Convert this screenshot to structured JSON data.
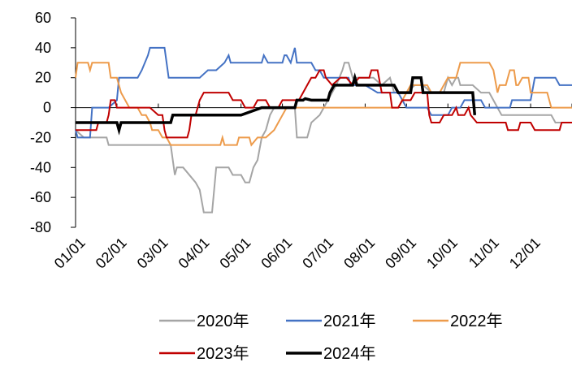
{
  "chart_data": {
    "type": "line",
    "title": "",
    "xlabel": "",
    "ylabel": "",
    "ylim": [
      -80,
      60
    ],
    "yticks": [
      60,
      40,
      20,
      0,
      -20,
      -40,
      -60,
      -80
    ],
    "x_tick_labels": [
      "01/01",
      "02/01",
      "03/01",
      "04/01",
      "05/01",
      "06/01",
      "07/01",
      "08/01",
      "09/01",
      "10/01",
      "11/01",
      "12/01"
    ],
    "grid": false,
    "legend_position": "bottom",
    "series": [
      {
        "name": "2020年",
        "color": "#a5a5a5",
        "points": [
          [
            0.0,
            -15
          ],
          [
            0.2,
            -20
          ],
          [
            0.75,
            -20
          ],
          [
            0.8,
            -25
          ],
          [
            2.3,
            -25
          ],
          [
            2.4,
            -45
          ],
          [
            2.45,
            -40
          ],
          [
            2.6,
            -40
          ],
          [
            2.9,
            -50
          ],
          [
            3.0,
            -55
          ],
          [
            3.1,
            -70
          ],
          [
            3.3,
            -70
          ],
          [
            3.4,
            -40
          ],
          [
            3.7,
            -40
          ],
          [
            3.8,
            -45
          ],
          [
            4.0,
            -45
          ],
          [
            4.1,
            -50
          ],
          [
            4.2,
            -50
          ],
          [
            4.3,
            -40
          ],
          [
            4.4,
            -35
          ],
          [
            4.5,
            -20
          ],
          [
            4.6,
            -15
          ],
          [
            4.7,
            -5
          ],
          [
            4.8,
            0
          ],
          [
            5.3,
            0
          ],
          [
            5.35,
            -20
          ],
          [
            5.6,
            -20
          ],
          [
            5.7,
            -10
          ],
          [
            5.9,
            -5
          ],
          [
            6.0,
            0
          ],
          [
            6.1,
            5
          ],
          [
            6.3,
            15
          ],
          [
            6.45,
            25
          ],
          [
            6.5,
            30
          ],
          [
            6.6,
            30
          ],
          [
            6.7,
            20
          ],
          [
            7.2,
            20
          ],
          [
            7.4,
            15
          ],
          [
            7.6,
            20
          ],
          [
            7.7,
            10
          ],
          [
            8.0,
            10
          ],
          [
            8.2,
            15
          ],
          [
            8.4,
            15
          ],
          [
            8.6,
            10
          ],
          [
            8.9,
            10
          ],
          [
            9.0,
            20
          ],
          [
            9.1,
            15
          ],
          [
            9.2,
            20
          ],
          [
            9.25,
            20
          ],
          [
            9.3,
            15
          ],
          [
            9.6,
            15
          ],
          [
            9.8,
            10
          ],
          [
            10.0,
            10
          ],
          [
            10.2,
            0
          ],
          [
            10.3,
            -5
          ],
          [
            11.0,
            -5
          ],
          [
            11.5,
            -5
          ],
          [
            11.6,
            -10
          ],
          [
            12.0,
            -10
          ]
        ]
      },
      {
        "name": "2021年",
        "color": "#4472c4",
        "points": [
          [
            0.0,
            -15
          ],
          [
            0.05,
            -20
          ],
          [
            0.35,
            -20
          ],
          [
            0.4,
            0
          ],
          [
            0.8,
            0
          ],
          [
            1.0,
            5
          ],
          [
            1.05,
            20
          ],
          [
            1.1,
            20
          ],
          [
            1.5,
            20
          ],
          [
            1.6,
            25
          ],
          [
            1.75,
            35
          ],
          [
            1.8,
            40
          ],
          [
            2.15,
            40
          ],
          [
            2.25,
            20
          ],
          [
            2.9,
            20
          ],
          [
            3.0,
            20
          ],
          [
            3.2,
            25
          ],
          [
            3.4,
            25
          ],
          [
            3.6,
            30
          ],
          [
            3.7,
            35
          ],
          [
            3.75,
            30
          ],
          [
            3.9,
            30
          ],
          [
            4.0,
            30
          ],
          [
            4.3,
            30
          ],
          [
            4.5,
            30
          ],
          [
            4.55,
            35
          ],
          [
            4.65,
            30
          ],
          [
            5.0,
            30
          ],
          [
            5.05,
            35
          ],
          [
            5.1,
            35
          ],
          [
            5.2,
            30
          ],
          [
            5.3,
            40
          ],
          [
            5.35,
            30
          ],
          [
            5.7,
            30
          ],
          [
            5.8,
            25
          ],
          [
            5.9,
            25
          ],
          [
            6.0,
            20
          ],
          [
            6.4,
            20
          ],
          [
            6.6,
            20
          ],
          [
            6.65,
            15
          ],
          [
            6.8,
            15
          ],
          [
            7.0,
            15
          ],
          [
            7.3,
            10
          ],
          [
            7.8,
            10
          ],
          [
            7.9,
            5
          ],
          [
            8.0,
            0
          ],
          [
            8.5,
            0
          ],
          [
            8.6,
            -5
          ],
          [
            9.0,
            -5
          ],
          [
            9.1,
            0
          ],
          [
            9.3,
            0
          ],
          [
            9.4,
            5
          ],
          [
            9.8,
            5
          ],
          [
            9.9,
            0
          ],
          [
            10.3,
            0
          ],
          [
            10.5,
            0
          ],
          [
            10.55,
            5
          ],
          [
            10.9,
            5
          ],
          [
            11.0,
            5
          ],
          [
            11.1,
            20
          ],
          [
            11.6,
            20
          ],
          [
            11.7,
            15
          ],
          [
            12.0,
            15
          ]
        ]
      },
      {
        "name": "2022年",
        "color": "#ed9b4b",
        "points": [
          [
            0.0,
            20
          ],
          [
            0.05,
            30
          ],
          [
            0.3,
            30
          ],
          [
            0.35,
            25
          ],
          [
            0.4,
            30
          ],
          [
            0.8,
            30
          ],
          [
            0.85,
            20
          ],
          [
            1.0,
            20
          ],
          [
            1.1,
            10
          ],
          [
            1.2,
            5
          ],
          [
            1.3,
            0
          ],
          [
            1.5,
            0
          ],
          [
            1.6,
            -5
          ],
          [
            1.7,
            -5
          ],
          [
            1.8,
            -10
          ],
          [
            1.85,
            -15
          ],
          [
            2.0,
            -15
          ],
          [
            2.1,
            -20
          ],
          [
            2.2,
            -20
          ],
          [
            2.3,
            -25
          ],
          [
            3.5,
            -25
          ],
          [
            3.55,
            -20
          ],
          [
            3.6,
            -25
          ],
          [
            3.9,
            -25
          ],
          [
            3.95,
            -20
          ],
          [
            4.2,
            -20
          ],
          [
            4.25,
            -25
          ],
          [
            4.4,
            -20
          ],
          [
            4.6,
            -20
          ],
          [
            4.8,
            -15
          ],
          [
            4.9,
            -10
          ],
          [
            5.0,
            -5
          ],
          [
            5.1,
            0
          ],
          [
            7.8,
            0
          ],
          [
            7.9,
            5
          ],
          [
            8.0,
            10
          ],
          [
            8.1,
            15
          ],
          [
            8.5,
            15
          ],
          [
            8.6,
            10
          ],
          [
            8.8,
            10
          ],
          [
            8.9,
            15
          ],
          [
            9.0,
            20
          ],
          [
            9.2,
            20
          ],
          [
            9.3,
            30
          ],
          [
            10.0,
            30
          ],
          [
            10.1,
            25
          ],
          [
            10.2,
            10
          ],
          [
            10.25,
            15
          ],
          [
            10.4,
            15
          ],
          [
            10.5,
            25
          ],
          [
            10.6,
            25
          ],
          [
            10.65,
            15
          ],
          [
            10.7,
            15
          ],
          [
            10.8,
            20
          ],
          [
            10.95,
            20
          ],
          [
            11.0,
            10
          ],
          [
            11.4,
            10
          ],
          [
            11.5,
            0
          ],
          [
            12.0,
            0
          ]
        ]
      },
      {
        "name": "2023年",
        "color": "#c00000",
        "points": [
          [
            0.0,
            -15
          ],
          [
            0.5,
            -15
          ],
          [
            0.55,
            -10
          ],
          [
            0.75,
            -10
          ],
          [
            0.8,
            -5
          ],
          [
            0.85,
            5
          ],
          [
            0.95,
            5
          ],
          [
            1.0,
            0
          ],
          [
            1.5,
            0
          ],
          [
            1.8,
            0
          ],
          [
            2.0,
            -5
          ],
          [
            2.1,
            -5
          ],
          [
            2.15,
            -15
          ],
          [
            2.2,
            -20
          ],
          [
            2.7,
            -20
          ],
          [
            2.75,
            -15
          ],
          [
            2.8,
            -5
          ],
          [
            2.9,
            -5
          ],
          [
            3.0,
            5
          ],
          [
            3.1,
            10
          ],
          [
            3.7,
            10
          ],
          [
            3.8,
            5
          ],
          [
            4.0,
            5
          ],
          [
            4.1,
            0
          ],
          [
            4.3,
            0
          ],
          [
            4.4,
            5
          ],
          [
            4.6,
            5
          ],
          [
            4.7,
            0
          ],
          [
            4.9,
            0
          ],
          [
            5.0,
            5
          ],
          [
            5.4,
            5
          ],
          [
            5.5,
            10
          ],
          [
            5.6,
            15
          ],
          [
            5.7,
            20
          ],
          [
            5.8,
            20
          ],
          [
            5.9,
            25
          ],
          [
            6.0,
            25
          ],
          [
            6.05,
            20
          ],
          [
            6.2,
            15
          ],
          [
            6.4,
            20
          ],
          [
            6.55,
            20
          ],
          [
            6.7,
            15
          ],
          [
            6.85,
            20
          ],
          [
            7.1,
            20
          ],
          [
            7.15,
            25
          ],
          [
            7.3,
            25
          ],
          [
            7.4,
            10
          ],
          [
            7.6,
            10
          ],
          [
            7.65,
            0
          ],
          [
            7.8,
            0
          ],
          [
            7.9,
            5
          ],
          [
            8.1,
            5
          ],
          [
            8.2,
            10
          ],
          [
            8.5,
            10
          ],
          [
            8.55,
            -5
          ],
          [
            8.6,
            -10
          ],
          [
            8.8,
            -10
          ],
          [
            8.9,
            -5
          ],
          [
            9.1,
            -5
          ],
          [
            9.2,
            0
          ],
          [
            9.25,
            -5
          ],
          [
            9.4,
            -5
          ],
          [
            9.5,
            0
          ],
          [
            9.55,
            -5
          ],
          [
            9.7,
            -10
          ],
          [
            10.4,
            -10
          ],
          [
            10.45,
            -15
          ],
          [
            10.7,
            -15
          ],
          [
            10.75,
            -10
          ],
          [
            11.0,
            -10
          ],
          [
            11.1,
            -15
          ],
          [
            11.7,
            -15
          ],
          [
            11.75,
            -10
          ],
          [
            12.0,
            -10
          ]
        ]
      },
      {
        "name": "2024年",
        "color": "#000000",
        "points": [
          [
            0.0,
            -10
          ],
          [
            0.6,
            -10
          ],
          [
            0.9,
            -10
          ],
          [
            1.0,
            -10
          ],
          [
            1.05,
            -15
          ],
          [
            1.1,
            -10
          ],
          [
            1.4,
            -10
          ],
          [
            1.6,
            -10
          ],
          [
            2.0,
            -10
          ],
          [
            2.3,
            -10
          ],
          [
            2.35,
            -5
          ],
          [
            3.0,
            -5
          ],
          [
            3.4,
            -5
          ],
          [
            3.5,
            -5
          ],
          [
            4.0,
            -5
          ],
          [
            4.5,
            0
          ],
          [
            5.3,
            0
          ],
          [
            5.35,
            5
          ],
          [
            5.5,
            5
          ],
          [
            5.55,
            6
          ],
          [
            5.7,
            5
          ],
          [
            5.8,
            5
          ],
          [
            6.1,
            5
          ],
          [
            6.15,
            10
          ],
          [
            6.25,
            15
          ],
          [
            6.5,
            15
          ],
          [
            6.7,
            15
          ],
          [
            6.75,
            20
          ],
          [
            6.8,
            15
          ],
          [
            7.0,
            15
          ],
          [
            7.1,
            15
          ],
          [
            7.3,
            15
          ],
          [
            7.5,
            15
          ],
          [
            7.6,
            15
          ],
          [
            7.7,
            15
          ],
          [
            7.8,
            10
          ],
          [
            8.0,
            10
          ],
          [
            8.1,
            10
          ],
          [
            8.15,
            20
          ],
          [
            8.35,
            20
          ],
          [
            8.4,
            10
          ],
          [
            8.5,
            10
          ],
          [
            9.0,
            10
          ],
          [
            9.3,
            10
          ],
          [
            9.6,
            10
          ],
          [
            9.65,
            -5
          ]
        ]
      }
    ]
  }
}
